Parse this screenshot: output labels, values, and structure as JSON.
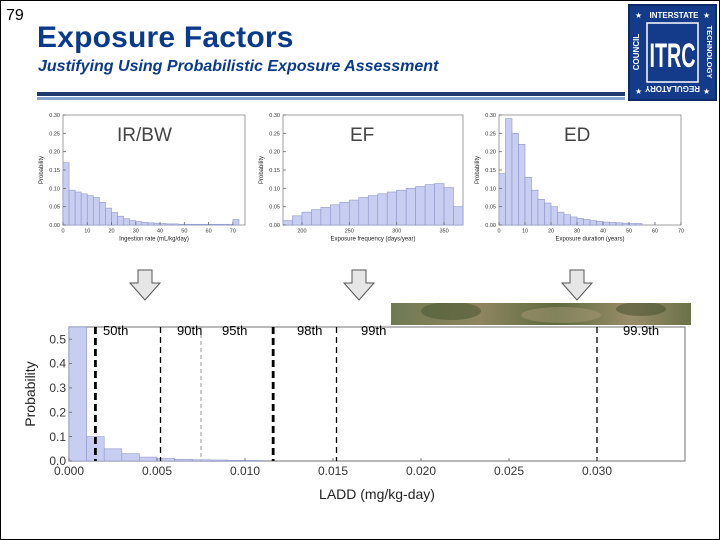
{
  "slide": {
    "number": "79",
    "title": "Exposure Factors",
    "subtitle": "Justifying Using Probabilistic Exposure Assessment"
  },
  "logo": {
    "letters": "ITRC",
    "text_top": "INTERSTATE",
    "text_right": "TECHNOLOGY",
    "text_bottom": "REGULATORY",
    "text_left": "COUNCIL",
    "colors": {
      "background": "#143a8a",
      "text": "#ffffff"
    }
  },
  "arrows": {
    "icon": "down-arrow-icon",
    "color": "#e6e6e6"
  },
  "chart_data": [
    {
      "type": "bar",
      "overlay_label": "IR/BW",
      "xlabel": "Ingestion rate (mL/kg/day)",
      "ylabel": "Probability",
      "xlim": [
        0,
        75
      ],
      "ylim": [
        0,
        0.3
      ],
      "xticks": [
        "0",
        "10",
        "20",
        "30",
        "40",
        "50",
        "60",
        "70"
      ],
      "yticks": [
        "0.00",
        "0.05",
        "0.10",
        "0.15",
        "0.20",
        "0.25",
        "0.30"
      ],
      "bin_width": 2.5,
      "values": [
        0.17,
        0.095,
        0.09,
        0.085,
        0.08,
        0.075,
        0.062,
        0.046,
        0.034,
        0.024,
        0.017,
        0.012,
        0.009,
        0.007,
        0.006,
        0.005,
        0.004,
        0.003,
        0.003,
        0.002,
        0.002,
        0.002,
        0.002,
        0.002,
        0.002,
        0.002,
        0.002,
        0.002,
        0.015
      ],
      "bar_color": "#c7cef2"
    },
    {
      "type": "bar",
      "overlay_label": "EF",
      "xlabel": "Exposure frequency (days/year)",
      "ylabel": "Probability",
      "xlim": [
        180,
        370
      ],
      "ylim": [
        0,
        0.3
      ],
      "xticks": [
        "200",
        "250",
        "300",
        "350"
      ],
      "yticks": [
        "0.00",
        "0.05",
        "0.10",
        "0.15",
        "0.20",
        "0.25",
        "0.30"
      ],
      "bin_width": 10,
      "values": [
        0.012,
        0.025,
        0.035,
        0.042,
        0.048,
        0.055,
        0.062,
        0.068,
        0.075,
        0.08,
        0.085,
        0.09,
        0.095,
        0.1,
        0.105,
        0.11,
        0.113,
        0.102,
        0.05
      ],
      "bar_color": "#c7cef2"
    },
    {
      "type": "bar",
      "overlay_label": "ED",
      "xlabel": "Exposure duration (years)",
      "ylabel": "Probability",
      "xlim": [
        0,
        70
      ],
      "ylim": [
        0,
        0.3
      ],
      "xticks": [
        "0",
        "10",
        "20",
        "30",
        "40",
        "50",
        "60",
        "70"
      ],
      "yticks": [
        "0.00",
        "0.05",
        "0.10",
        "0.15",
        "0.20",
        "0.25",
        "0.30"
      ],
      "bin_width": 2.5,
      "values": [
        0.14,
        0.29,
        0.25,
        0.22,
        0.13,
        0.095,
        0.07,
        0.06,
        0.05,
        0.035,
        0.028,
        0.022,
        0.018,
        0.015,
        0.012,
        0.01,
        0.008,
        0.007,
        0.006,
        0.005,
        0.004,
        0.004
      ],
      "bar_color": "#c7cef2"
    },
    {
      "type": "bar",
      "xlabel": "LADD (mg/kg-day)",
      "ylabel": "Probability",
      "xlim": [
        0,
        0.035
      ],
      "ylim": [
        0,
        0.55
      ],
      "xticks": [
        "0.000",
        "0.005",
        "0.010",
        "0.015",
        "0.020",
        "0.025",
        "0.030"
      ],
      "yticks": [
        "0.0",
        "0.1",
        "0.2",
        "0.3",
        "0.4",
        "0.5"
      ],
      "bin_width": 0.001,
      "values": [
        0.55,
        0.1,
        0.05,
        0.03,
        0.016,
        0.01,
        0.007,
        0.005,
        0.004,
        0.003,
        0.002
      ],
      "bar_color": "#c7cef2",
      "percentiles": [
        {
          "label": "50th",
          "x": 0.0015,
          "style": "bold-dashed"
        },
        {
          "label": "90th",
          "x": 0.0052,
          "style": "dashed"
        },
        {
          "label": "95th",
          "x": 0.0075,
          "style": "light-dashed"
        },
        {
          "label": "98th",
          "x": 0.0116,
          "style": "bold-dashed"
        },
        {
          "label": "99th",
          "x": 0.0152,
          "style": "dashed"
        },
        {
          "label": "99.9th",
          "x": 0.03,
          "style": "dashed"
        }
      ]
    }
  ]
}
